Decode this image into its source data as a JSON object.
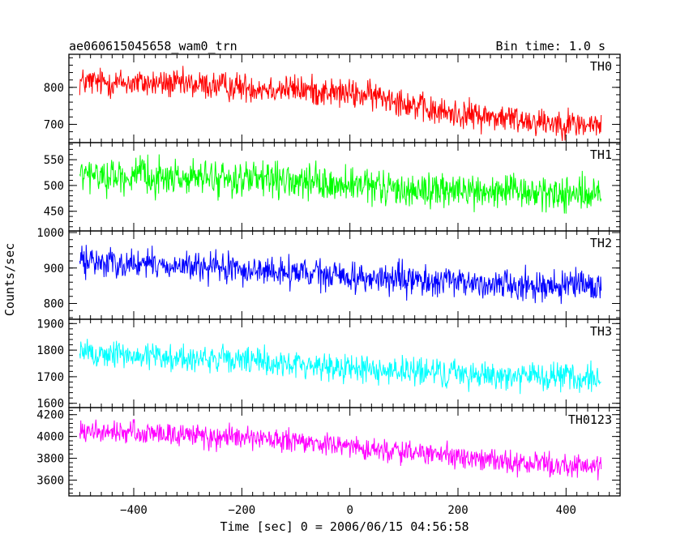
{
  "header": {
    "title": "ae060615045658_wam0_trn",
    "bin_time": "Bin time: 1.0 s"
  },
  "axes": {
    "xlabel": "Time [sec] 0 = 2006/06/15 04:56:58",
    "ylabel": "Counts/sec"
  },
  "chart_data": {
    "type": "line",
    "xlim": [
      -520,
      500
    ],
    "x": {
      "start": -500,
      "end": 465,
      "step": 1
    },
    "x_ticks": [
      -400,
      -200,
      0,
      200,
      400
    ],
    "grid": false,
    "panels": [
      {
        "name": "TH0",
        "color": "#ff0000",
        "ylim": [
          655,
          885
        ],
        "y_ticks": [
          700,
          800
        ],
        "trend": [
          [
            -500,
            815
          ],
          [
            -350,
            810
          ],
          [
            -100,
            795
          ],
          [
            80,
            772
          ],
          [
            150,
            735
          ],
          [
            300,
            715
          ],
          [
            465,
            695
          ]
        ],
        "noise_amplitude": 28
      },
      {
        "name": "TH1",
        "color": "#00ff00",
        "ylim": [
          415,
          580
        ],
        "y_ticks": [
          450,
          500,
          550
        ],
        "trend": [
          [
            -500,
            520
          ],
          [
            -200,
            512
          ],
          [
            100,
            492
          ],
          [
            465,
            482
          ]
        ],
        "noise_amplitude": 24
      },
      {
        "name": "TH2",
        "color": "#0000ff",
        "ylim": [
          760,
          1000
        ],
        "y_ticks": [
          800,
          900,
          1000
        ],
        "trend": [
          [
            -500,
            920
          ],
          [
            -200,
            895
          ],
          [
            100,
            865
          ],
          [
            465,
            845
          ]
        ],
        "noise_amplitude": 30
      },
      {
        "name": "TH3",
        "color": "#00ffff",
        "ylim": [
          1590,
          1910
        ],
        "y_ticks": [
          1600,
          1700,
          1800,
          1900
        ],
        "trend": [
          [
            -500,
            1790
          ],
          [
            -200,
            1760
          ],
          [
            100,
            1720
          ],
          [
            465,
            1690
          ]
        ],
        "noise_amplitude": 38
      },
      {
        "name": "TH0123",
        "color": "#ff00ff",
        "ylim": [
          3470,
          4250
        ],
        "y_ticks": [
          3600,
          3800,
          4000,
          4200
        ],
        "trend": [
          [
            -500,
            4040
          ],
          [
            -350,
            4030
          ],
          [
            -100,
            3950
          ],
          [
            100,
            3860
          ],
          [
            300,
            3760
          ],
          [
            465,
            3720
          ]
        ],
        "noise_amplitude": 75
      }
    ]
  }
}
